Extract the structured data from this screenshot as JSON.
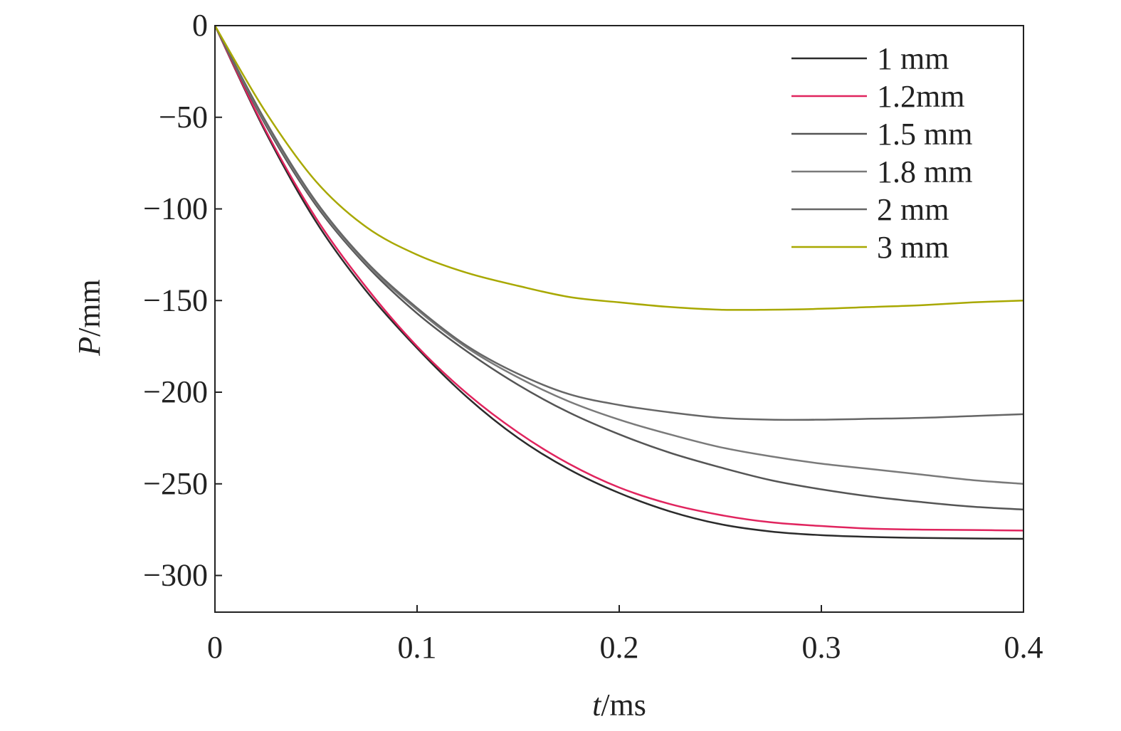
{
  "chart_data": {
    "type": "line",
    "title": "",
    "xlabel_var": "t",
    "xlabel_unit": "/ms",
    "ylabel_var": "P",
    "ylabel_unit": "/mm",
    "xlim": [
      0,
      0.4
    ],
    "ylim": [
      -320,
      0
    ],
    "xticks": [
      0,
      0.1,
      0.2,
      0.3,
      0.4
    ],
    "xtick_labels": [
      "0",
      "0.1",
      "0.2",
      "0.3",
      "0.4"
    ],
    "yticks": [
      0,
      -50,
      -100,
      -150,
      -200,
      -250,
      -300
    ],
    "ytick_labels": [
      "0",
      "−50",
      "−100",
      "−150",
      "−200",
      "−250",
      "−300"
    ],
    "grid": false,
    "legend_position": "top-right",
    "x": [
      0,
      0.025,
      0.05,
      0.075,
      0.1,
      0.125,
      0.15,
      0.175,
      0.2,
      0.225,
      0.25,
      0.275,
      0.3,
      0.325,
      0.35,
      0.375,
      0.4
    ],
    "series": [
      {
        "name": "1 mm",
        "color": "#2b2b2b",
        "values": [
          0,
          -58,
          -107,
          -145,
          -176,
          -203,
          -225,
          -242,
          -255,
          -265,
          -272,
          -276,
          -278,
          -279,
          -279.5,
          -279.8,
          -280
        ]
      },
      {
        "name": "1.2mm",
        "color": "#e0245e",
        "values": [
          0,
          -57,
          -105,
          -143,
          -175,
          -201,
          -222,
          -239,
          -252,
          -261,
          -267,
          -271,
          -273,
          -274.5,
          -275,
          -275.2,
          -275.5
        ]
      },
      {
        "name": "1.5 mm",
        "color": "#555555",
        "values": [
          0,
          -54,
          -98,
          -131,
          -157,
          -178,
          -196,
          -211,
          -223,
          -233,
          -241,
          -248,
          -253,
          -257,
          -260,
          -262.5,
          -264
        ]
      },
      {
        "name": "1.8 mm",
        "color": "#7a7a7a",
        "values": [
          0,
          -53,
          -97,
          -130,
          -155,
          -176,
          -192,
          -205,
          -215,
          -223,
          -230,
          -235,
          -239,
          -242,
          -245,
          -248,
          -250
        ]
      },
      {
        "name": "2 mm",
        "color": "#666666",
        "values": [
          0,
          -52,
          -96,
          -129,
          -154,
          -175,
          -190,
          -201,
          -207,
          -211,
          -214,
          -215,
          -215,
          -214.5,
          -214,
          -213,
          -212
        ]
      },
      {
        "name": "3 mm",
        "color": "#a8a800",
        "values": [
          0,
          -47,
          -85,
          -110,
          -125,
          -135,
          -142,
          -148,
          -151,
          -153.5,
          -155,
          -155,
          -154.5,
          -153.5,
          -152.5,
          -151,
          -150
        ]
      }
    ]
  }
}
